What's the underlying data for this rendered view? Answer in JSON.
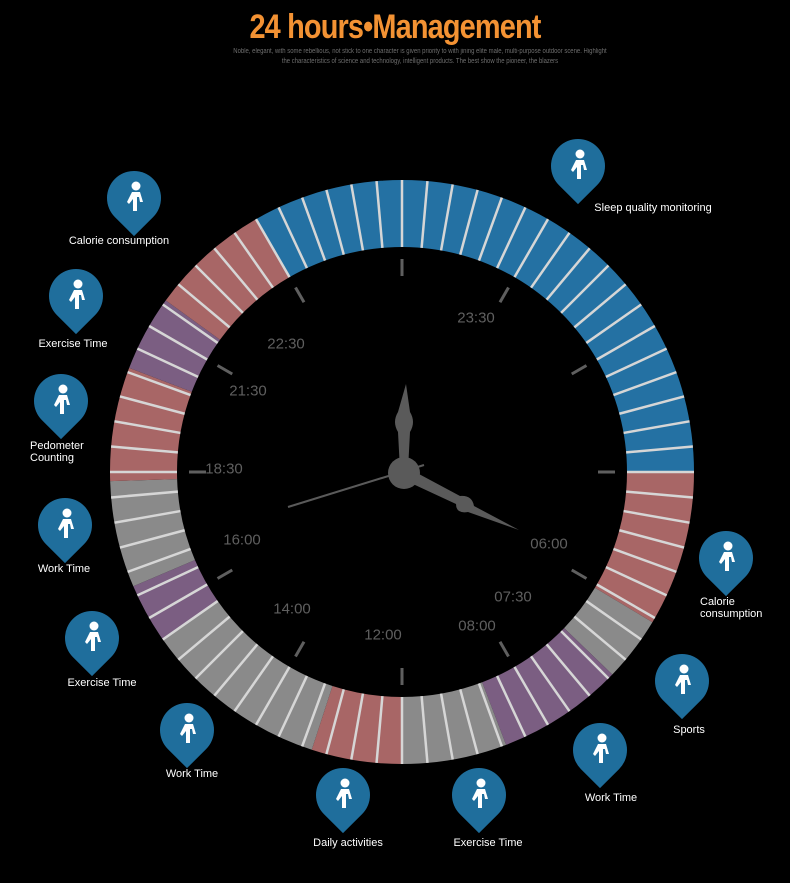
{
  "header": {
    "title": "24 hours•Management",
    "subtitle": "Noble, elegant, with some rebellious, not stick to one character is given priority to with jining elite male, multi-purpose outdoor scene. Highlight the characteristics of science and technology, intelligent products. The best show the pioneer, the blazers"
  },
  "colors": {
    "title": "#f39233",
    "sleep": "#2471a3",
    "active": "#a86666",
    "exercise": "#7b5e82",
    "work": "#8a8a8a",
    "pin": "#1f6e9c",
    "tick": "#5f5f5f"
  },
  "ring_segments": [
    {
      "category": "sleep",
      "color": "#2471a3",
      "from_fraction": -0.083,
      "to_fraction": 0.25
    },
    {
      "category": "active",
      "color": "#a86666",
      "from_fraction": 0.25,
      "to_fraction": 0.336
    },
    {
      "category": "work",
      "color": "#8a8a8a",
      "from_fraction": 0.336,
      "to_fraction": 0.372
    },
    {
      "category": "exercise",
      "color": "#7b5e82",
      "from_fraction": 0.372,
      "to_fraction": 0.442
    },
    {
      "category": "work",
      "color": "#8a8a8a",
      "from_fraction": 0.442,
      "to_fraction": 0.5
    },
    {
      "category": "active",
      "color": "#a86666",
      "from_fraction": 0.5,
      "to_fraction": 0.55
    },
    {
      "category": "work",
      "color": "#8a8a8a",
      "from_fraction": 0.55,
      "to_fraction": 0.653
    },
    {
      "category": "exercise",
      "color": "#7b5e82",
      "from_fraction": 0.653,
      "to_fraction": 0.686
    },
    {
      "category": "work",
      "color": "#8a8a8a",
      "from_fraction": 0.686,
      "to_fraction": 0.745
    },
    {
      "category": "active",
      "color": "#a86666",
      "from_fraction": 0.745,
      "to_fraction": 0.808
    },
    {
      "category": "exercise",
      "color": "#7b5e82",
      "from_fraction": 0.808,
      "to_fraction": 0.85
    },
    {
      "category": "active",
      "color": "#a86666",
      "from_fraction": 0.85,
      "to_fraction": 0.917
    }
  ],
  "clock_labels": [
    "23:30",
    "22:30",
    "21:30",
    "18:30",
    "16:00",
    "14:00",
    "12:00",
    "08:00",
    "07:30",
    "06:00"
  ],
  "pins": [
    {
      "label": "Calorie consumption",
      "icon": "bathing-baby-icon"
    },
    {
      "label": "Sleep quality monitoring",
      "icon": "sleeping-person-icon"
    },
    {
      "label": "Exercise Time",
      "icon": "shower-icon"
    },
    {
      "label": "Pedometer Counting",
      "icon": "walking-person-icon"
    },
    {
      "label": "Work Time",
      "icon": "desk-worker-icon"
    },
    {
      "label": "Calorie consumption",
      "icon": "running-person-icon"
    },
    {
      "label": "Exercise Time",
      "icon": "seated-clock-icon"
    },
    {
      "label": "Sports",
      "icon": "running-person-icon"
    },
    {
      "label": "Work Time",
      "icon": "desk-worker-icon"
    },
    {
      "label": "Work Time",
      "icon": "desk-worker-icon"
    },
    {
      "label": "Daily activities",
      "icon": "walking-person-icon"
    },
    {
      "label": "Exercise Time",
      "icon": "seated-clock-icon"
    }
  ]
}
